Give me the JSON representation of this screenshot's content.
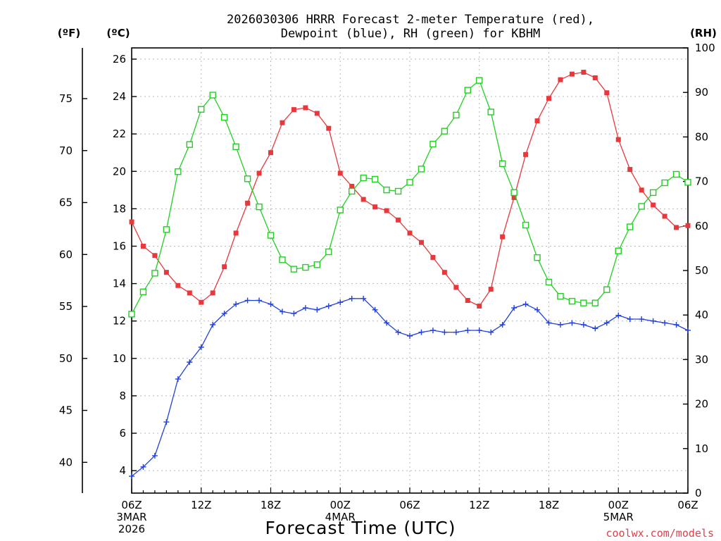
{
  "chart_data": {
    "type": "line",
    "title_lines": [
      "2026030306 HRRR Forecast 2-meter Temperature (red),",
      "Dewpoint (blue), RH (green) for KBHM"
    ],
    "xlabel": "Forecast Time (UTC)",
    "credit": "coolwx.com/models",
    "left_far_unit": "(ºF)",
    "left_unit": "(ºC)",
    "right_unit": "(RH)",
    "x_hours": [
      0,
      1,
      2,
      3,
      4,
      5,
      6,
      7,
      8,
      9,
      10,
      11,
      12,
      13,
      14,
      15,
      16,
      17,
      18,
      19,
      20,
      21,
      22,
      23,
      24,
      25,
      26,
      27,
      28,
      29,
      30,
      31,
      32,
      33,
      34,
      35,
      36,
      37,
      38,
      39,
      40,
      41,
      42,
      43,
      44,
      45,
      46,
      47,
      48
    ],
    "x_range": [
      0,
      48
    ],
    "x_ticks": [
      {
        "hour": 0,
        "lines": [
          "06Z",
          "3MAR",
          "2026"
        ]
      },
      {
        "hour": 6,
        "lines": [
          "12Z"
        ]
      },
      {
        "hour": 12,
        "lines": [
          "18Z"
        ]
      },
      {
        "hour": 18,
        "lines": [
          "00Z",
          "4MAR"
        ]
      },
      {
        "hour": 24,
        "lines": [
          "06Z"
        ]
      },
      {
        "hour": 30,
        "lines": [
          "12Z"
        ]
      },
      {
        "hour": 36,
        "lines": [
          "18Z"
        ]
      },
      {
        "hour": 42,
        "lines": [
          "00Z",
          "5MAR"
        ]
      },
      {
        "hour": 48,
        "lines": [
          "06Z"
        ]
      }
    ],
    "y_celsius": {
      "range": [
        2.8,
        26.6
      ],
      "ticks": [
        4,
        6,
        8,
        10,
        12,
        14,
        16,
        18,
        20,
        22,
        24,
        26
      ]
    },
    "y_fahrenheit": {
      "ticks": [
        40,
        45,
        50,
        55,
        60,
        65,
        70,
        75
      ]
    },
    "y_rh": {
      "range": [
        0,
        100
      ],
      "ticks": [
        0,
        10,
        20,
        30,
        40,
        50,
        60,
        70,
        80,
        90,
        100
      ]
    },
    "grid": true,
    "series": [
      {
        "key": "temperature",
        "color": "#e8383c",
        "marker": "filled-square",
        "axis": "celsius",
        "values": [
          17.3,
          16.0,
          15.5,
          14.6,
          13.9,
          13.5,
          13.0,
          13.5,
          14.9,
          16.7,
          18.3,
          19.9,
          21.0,
          22.6,
          23.3,
          23.4,
          23.1,
          22.3,
          19.9,
          19.2,
          18.5,
          18.1,
          17.9,
          17.4,
          16.7,
          16.2,
          15.4,
          14.6,
          13.8,
          13.1,
          12.8,
          13.7,
          16.5,
          18.6,
          20.9,
          22.7,
          23.9,
          24.9,
          25.2,
          25.3,
          25.0,
          24.2,
          21.7,
          20.1,
          19.0,
          18.2,
          17.6,
          17.0,
          17.1
        ]
      },
      {
        "key": "dewpoint",
        "color": "#2040e0",
        "marker": "plus",
        "axis": "celsius",
        "values": [
          3.7,
          4.2,
          4.8,
          6.6,
          8.9,
          9.8,
          10.6,
          11.8,
          12.4,
          12.9,
          13.1,
          13.1,
          12.9,
          12.5,
          12.4,
          12.7,
          12.6,
          12.8,
          13.0,
          13.2,
          13.2,
          12.6,
          11.9,
          11.4,
          11.2,
          11.4,
          11.5,
          11.4,
          11.4,
          11.5,
          11.5,
          11.4,
          11.8,
          12.7,
          12.9,
          12.6,
          11.9,
          11.8,
          11.9,
          11.8,
          11.6,
          11.9,
          12.3,
          12.1,
          12.1,
          12.0,
          11.9,
          11.8,
          11.5
        ]
      },
      {
        "key": "rh",
        "color": "#20d020",
        "marker": "open-square",
        "axis": "rh",
        "values": [
          40.2,
          45.2,
          49.4,
          59.2,
          72.2,
          78.3,
          86.2,
          89.4,
          84.4,
          77.8,
          70.6,
          64.3,
          57.9,
          52.4,
          50.3,
          50.7,
          51.3,
          54.2,
          63.6,
          67.8,
          70.8,
          70.5,
          68.1,
          67.8,
          69.8,
          72.8,
          78.4,
          81.3,
          84.9,
          90.5,
          92.7,
          85.6,
          74.0,
          67.5,
          60.2,
          52.9,
          47.4,
          44.2,
          43.1,
          42.7,
          42.7,
          45.7,
          54.4,
          59.8,
          64.4,
          67.5,
          69.7,
          71.6,
          69.8
        ]
      }
    ]
  }
}
